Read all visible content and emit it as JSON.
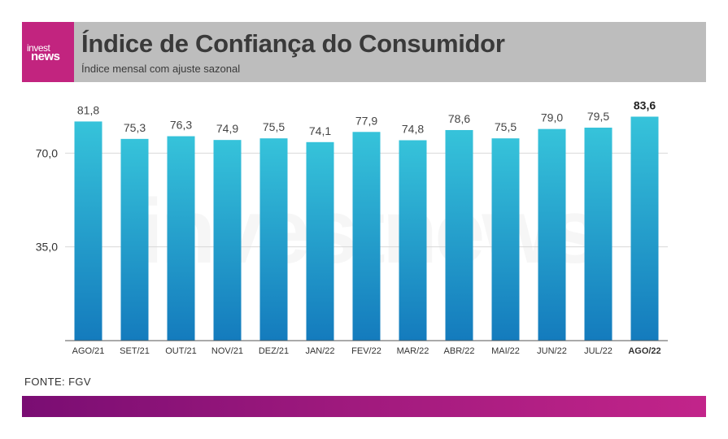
{
  "header": {
    "logo_line1": "invest",
    "logo_line2": "news",
    "title": "Índice de Confiança do Consumidor",
    "subtitle": "Índice mensal com ajuste sazonal"
  },
  "source": "FONTE: FGV",
  "watermark": "investnews",
  "colors": {
    "bar_top": "#36c3da",
    "bar_bottom": "#147bbd",
    "logo_bg": "#c2247f",
    "header_bg": "#bdbdbd"
  },
  "chart_data": {
    "type": "bar",
    "title": "Índice de Confiança do Consumidor",
    "subtitle": "Índice mensal com ajuste sazonal",
    "categories": [
      "AGO/21",
      "SET/21",
      "OUT/21",
      "NOV/21",
      "DEZ/21",
      "JAN/22",
      "FEV/22",
      "MAR/22",
      "ABR/22",
      "MAI/22",
      "JUN/22",
      "JUL/22",
      "AGO/22"
    ],
    "values": [
      81.8,
      75.3,
      76.3,
      74.9,
      75.5,
      74.1,
      77.9,
      74.8,
      78.6,
      75.5,
      79.0,
      79.5,
      83.6
    ],
    "value_labels": [
      "81,8",
      "75,3",
      "76,3",
      "74,9",
      "75,5",
      "74,1",
      "77,9",
      "74,8",
      "78,6",
      "75,5",
      "79,0",
      "79,5",
      "83,6"
    ],
    "highlight_index": 12,
    "yticks": [
      35.0,
      70.0
    ],
    "ytick_labels": [
      "35,0",
      "70,0"
    ],
    "ylim": [
      0,
      88
    ],
    "grid": true,
    "legend": "none"
  }
}
